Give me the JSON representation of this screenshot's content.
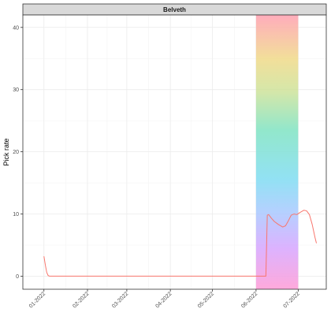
{
  "chart_data": {
    "type": "line",
    "facet_title": "Belveth",
    "xlabel": "",
    "ylabel": "Pick rate",
    "x_tick_labels": [
      "01-2022",
      "02-2022",
      "03-2022",
      "04-2022",
      "05-2022",
      "06-2022",
      "07-2022"
    ],
    "x_tick_dates": [
      "2022-01-01",
      "2022-02-01",
      "2022-03-01",
      "2022-04-01",
      "2022-05-01",
      "2022-06-01",
      "2022-07-01"
    ],
    "xlim": [
      "2021-12-17",
      "2022-07-21"
    ],
    "y_ticks": [
      0,
      10,
      20,
      30,
      40
    ],
    "ylim": [
      -2.1,
      42
    ],
    "grid": true,
    "highlight_band": {
      "x_start": "2022-06-01",
      "x_end": "2022-07-01",
      "fill": "rainbow"
    },
    "series": [
      {
        "color": "#F8766D",
        "points": [
          {
            "x": "2022-01-01",
            "y": 3.2
          },
          {
            "x": "2022-01-02",
            "y": 1.8
          },
          {
            "x": "2022-01-03",
            "y": 0.6
          },
          {
            "x": "2022-01-04",
            "y": 0.1
          },
          {
            "x": "2022-01-05",
            "y": 0
          },
          {
            "x": "2022-06-08",
            "y": 0
          },
          {
            "x": "2022-06-09",
            "y": 9.8
          },
          {
            "x": "2022-06-10",
            "y": 9.9
          },
          {
            "x": "2022-06-12",
            "y": 9.3
          },
          {
            "x": "2022-06-14",
            "y": 8.8
          },
          {
            "x": "2022-06-17",
            "y": 8.3
          },
          {
            "x": "2022-06-20",
            "y": 7.9
          },
          {
            "x": "2022-06-22",
            "y": 8.1
          },
          {
            "x": "2022-06-24",
            "y": 8.9
          },
          {
            "x": "2022-06-26",
            "y": 9.8
          },
          {
            "x": "2022-06-28",
            "y": 10.0
          },
          {
            "x": "2022-06-30",
            "y": 9.9
          },
          {
            "x": "2022-07-02",
            "y": 10.2
          },
          {
            "x": "2022-07-05",
            "y": 10.6
          },
          {
            "x": "2022-07-07",
            "y": 10.5
          },
          {
            "x": "2022-07-09",
            "y": 9.9
          },
          {
            "x": "2022-07-11",
            "y": 8.3
          },
          {
            "x": "2022-07-13",
            "y": 6.2
          },
          {
            "x": "2022-07-14",
            "y": 5.3
          }
        ]
      }
    ]
  }
}
